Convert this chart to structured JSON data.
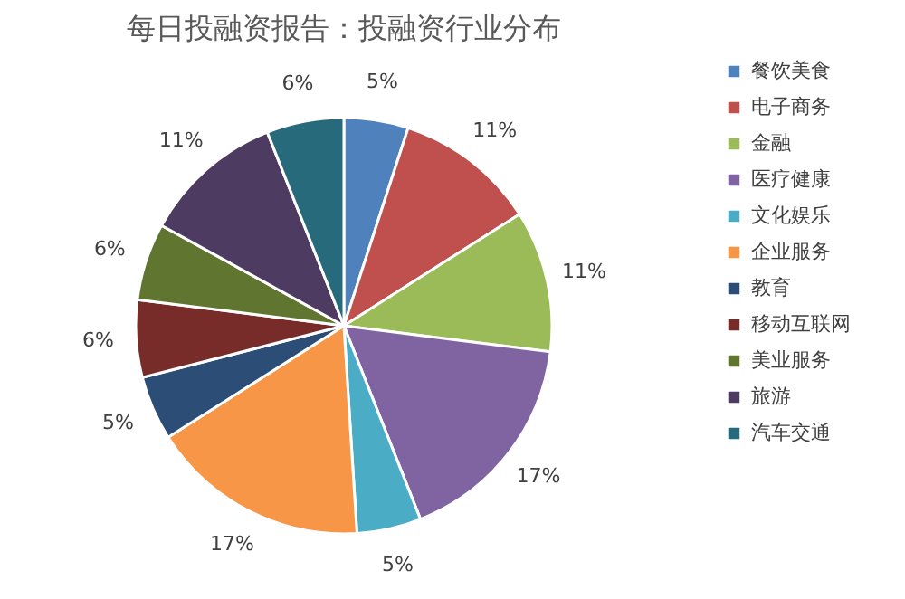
{
  "chart_data": {
    "type": "pie",
    "title": "每日投融资报告：投融资行业分布",
    "categories": [
      "餐饮美食",
      "电子商务",
      "金融",
      "医疗健康",
      "文化娱乐",
      "企业服务",
      "教育",
      "移动互联网",
      "美业服务",
      "旅游",
      "汽车交通"
    ],
    "values": [
      5,
      11,
      11,
      17,
      5,
      17,
      5,
      6,
      6,
      11,
      6
    ],
    "value_labels": [
      "5%",
      "11%",
      "11%",
      "17%",
      "5%",
      "17%",
      "5%",
      "6%",
      "6%",
      "11%",
      "6%"
    ],
    "colors": [
      "#4f81bd",
      "#c0504d",
      "#9bbb59",
      "#8064a2",
      "#4bacc6",
      "#f79646",
      "#2c4d75",
      "#772c2a",
      "#5f7530",
      "#4d3b62",
      "#276a7c"
    ],
    "legend": "right"
  }
}
